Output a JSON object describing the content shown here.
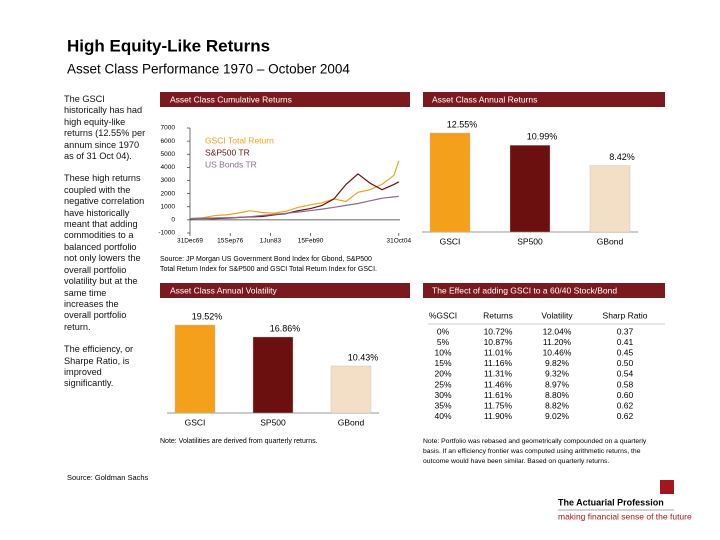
{
  "header": {
    "title": "High Equity-Like Returns",
    "subtitle": "Asset Class Performance 1970 – October 2004"
  },
  "sidebar": [
    "The GSCI historically has had high equity-like returns (12.55% per annum since 1970 as of 31 Oct 04).",
    "These high returns coupled with the negative correlation have historically meant that adding commodities to a balanced portfolio not only lowers the overall portfolio volatility but at the same time increases the overall portfolio return.",
    "The efficiency, or Sharpe Ratio, is improved significantly."
  ],
  "chart_data": [
    {
      "type": "line",
      "title": "Asset Class Cumulative Returns",
      "x": [
        1970,
        1972,
        1974,
        1976,
        1978,
        1980,
        1982,
        1984,
        1986,
        1988,
        1990,
        1992,
        1994,
        1996,
        1998,
        2000,
        2002,
        2004,
        2004.8
      ],
      "series": [
        {
          "name": "GSCI Total Return",
          "color": "#f5a01a",
          "values": [
            100,
            140,
            320,
            380,
            520,
            700,
            560,
            520,
            650,
            950,
            1150,
            1300,
            1600,
            1400,
            2100,
            2300,
            2700,
            3400,
            4500
          ]
        },
        {
          "name": "S&P500 TR",
          "color": "#6b0f0f",
          "values": [
            100,
            110,
            90,
            130,
            180,
            230,
            260,
            380,
            480,
            700,
            850,
            1100,
            1600,
            2700,
            3500,
            2800,
            2300,
            2700,
            2900
          ]
        },
        {
          "name": "US Bonds TR",
          "color": "#8a6a90",
          "values": [
            100,
            115,
            140,
            165,
            190,
            240,
            330,
            420,
            500,
            600,
            700,
            820,
            960,
            1100,
            1250,
            1450,
            1650,
            1750,
            1800
          ]
        }
      ],
      "xlim": [
        1970,
        2005
      ],
      "xticks": [
        {
          "value": 1970,
          "label": "31Dec69"
        },
        {
          "value": 1976.7,
          "label": "15Sep76"
        },
        {
          "value": 1983.4,
          "label": "1Jun83"
        },
        {
          "value": 1990.1,
          "label": "15Feb90"
        },
        {
          "value": 2004.8,
          "label": "31Oct04"
        }
      ],
      "ylim": [
        -1000,
        7000
      ],
      "yticks": [
        -1000,
        0,
        1000,
        2000,
        3000,
        4000,
        5000,
        6000,
        7000
      ]
    },
    {
      "type": "bar",
      "title": "Asset Class Annual Returns",
      "categories": [
        "GSCI",
        "SP500",
        "GBond"
      ],
      "values": [
        12.55,
        10.99,
        8.42
      ],
      "value_labels": [
        "12.55%",
        "10.99%",
        "8.42%"
      ],
      "colors": [
        "#f5a01a",
        "#6b0f0f",
        "#f3dfc6"
      ]
    },
    {
      "type": "bar",
      "title": "Asset Class Annual Volatility",
      "categories": [
        "GSCI",
        "SP500",
        "GBond"
      ],
      "values": [
        19.52,
        16.86,
        10.43
      ],
      "value_labels": [
        "19.52%",
        "16.86%",
        "10.43%"
      ],
      "colors": [
        "#f5a01a",
        "#6b0f0f",
        "#f3dfc6"
      ]
    }
  ],
  "table": {
    "title": "The Effect of adding GSCI to a 60/40 Stock/Bond",
    "columns": [
      "%GSCI",
      "Returns",
      "Volatility",
      "Sharp Ratio"
    ],
    "rows": [
      [
        "0%",
        "10.72%",
        "12.04%",
        "0.37"
      ],
      [
        "5%",
        "10.87%",
        "11.20%",
        "0.41"
      ],
      [
        "10%",
        "11.01%",
        "10.46%",
        "0.45"
      ],
      [
        "15%",
        "11.16%",
        "9.82%",
        "0.50"
      ],
      [
        "20%",
        "11.31%",
        "9.32%",
        "0.54"
      ],
      [
        "25%",
        "11.46%",
        "8.97%",
        "0.58"
      ],
      [
        "30%",
        "11.61%",
        "8.80%",
        "0.60"
      ],
      [
        "35%",
        "11.75%",
        "8.82%",
        "0.62"
      ],
      [
        "40%",
        "11.90%",
        "9.02%",
        "0.62"
      ]
    ]
  },
  "notes": {
    "source_top": [
      "Source: JP Morgan US Government Bond Index for Gbond, S&P500",
      "Total Return Index for S&P500 and GSCI Total Return Index for GSCI."
    ],
    "volatility": "Note: Volatilities are derived from quarterly returns.",
    "table": [
      "Note: Portfolio was rebased and geometrically compounded on a quarterly",
      "basis. If an efficiency frontier was computed using arithmetic returns, the",
      "outcome would have been similar. Based on quarterly returns."
    ]
  },
  "footer": {
    "source": "Source: Goldman Sachs",
    "logo": "The Actuarial Profession",
    "tagline": "making financial sense of the future"
  }
}
